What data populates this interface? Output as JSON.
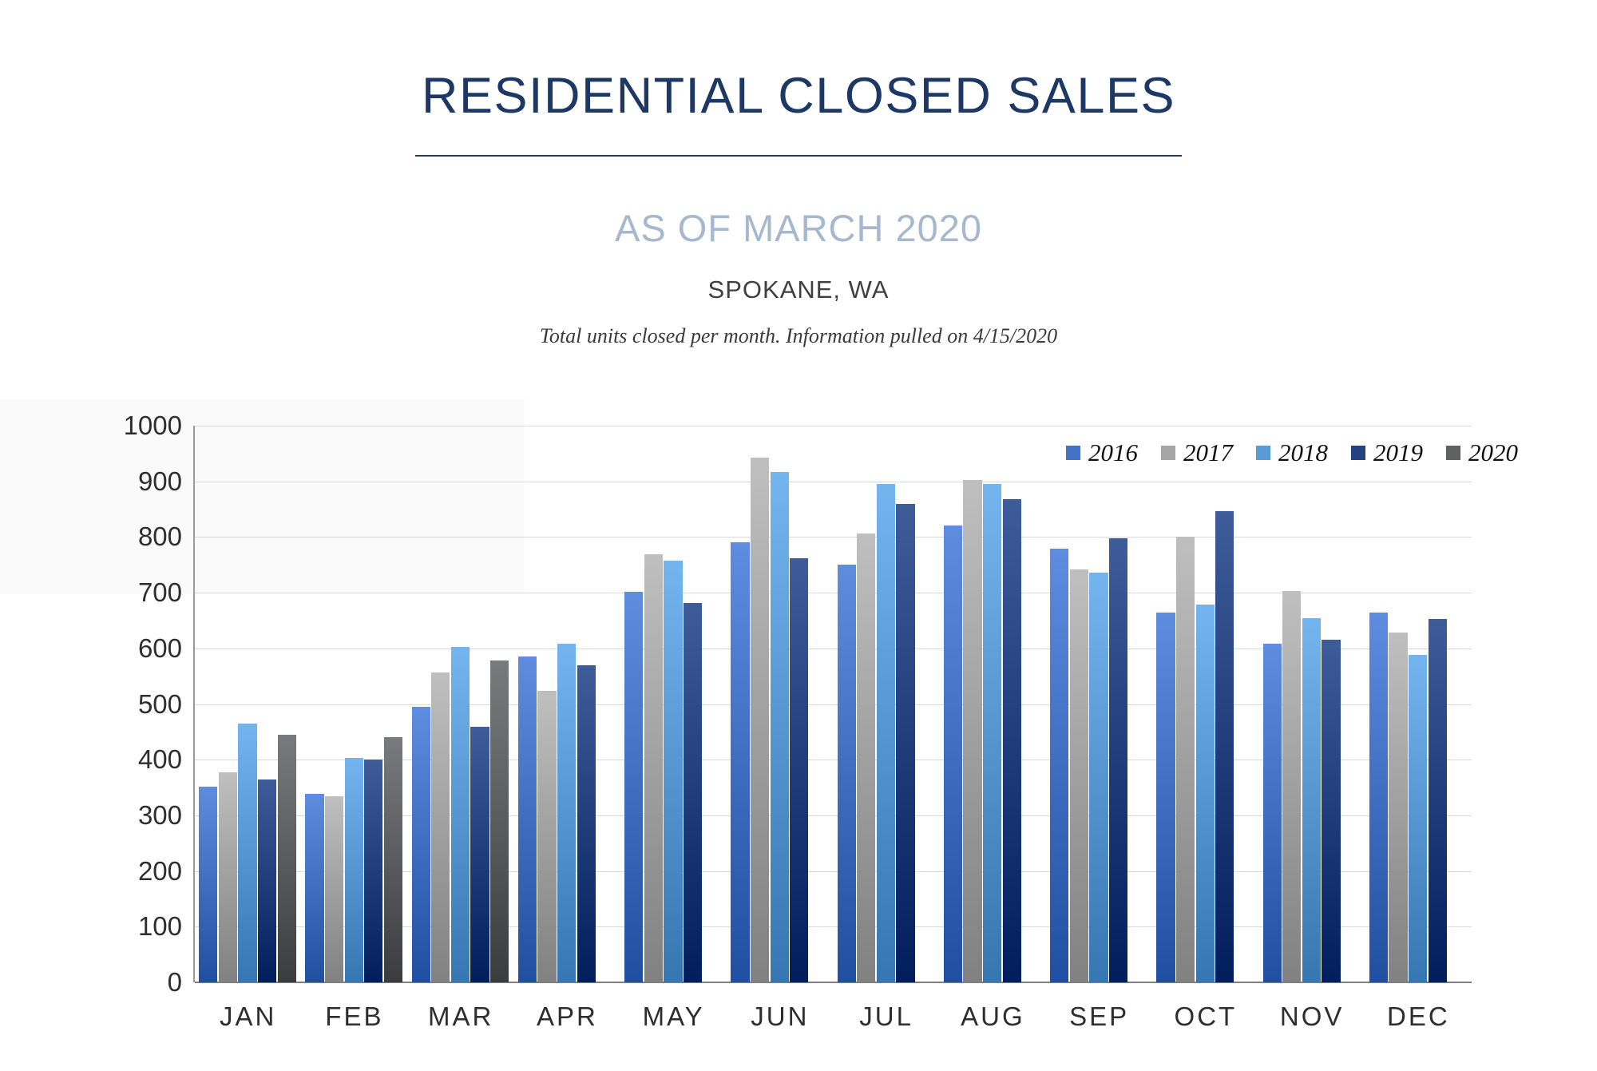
{
  "header": {
    "title": "RESIDENTIAL CLOSED SALES",
    "subtitle": "AS OF MARCH 2020",
    "location": "SPOKANE, WA",
    "note": "Total units closed per month.  Information pulled on 4/15/2020"
  },
  "chart_data": {
    "type": "bar",
    "title": "RESIDENTIAL CLOSED SALES",
    "subtitle": "AS OF MARCH 2020",
    "location": "SPOKANE, WA",
    "note": "Total units closed per month.  Information pulled on 4/15/2020",
    "categories": [
      "JAN",
      "FEB",
      "MAR",
      "APR",
      "MAY",
      "JUN",
      "JUL",
      "AUG",
      "SEP",
      "OCT",
      "NOV",
      "DEC"
    ],
    "series": [
      {
        "name": "2016",
        "color": "#4472C4",
        "values": [
          352,
          338,
          495,
          586,
          701,
          791,
          750,
          821,
          779,
          664,
          608,
          664
        ]
      },
      {
        "name": "2017",
        "color": "#A5A5A5",
        "values": [
          377,
          334,
          556,
          524,
          769,
          943,
          806,
          902,
          742,
          801,
          703,
          628
        ]
      },
      {
        "name": "2018",
        "color": "#5B9BD5",
        "values": [
          465,
          403,
          602,
          608,
          757,
          917,
          895,
          895,
          736,
          679,
          654,
          588
        ]
      },
      {
        "name": "2019",
        "color": "#254280",
        "values": [
          365,
          401,
          459,
          569,
          681,
          762,
          860,
          868,
          798,
          846,
          616,
          653
        ]
      },
      {
        "name": "2020",
        "color": "#5F6062",
        "values": [
          445,
          441,
          578,
          null,
          null,
          null,
          null,
          null,
          null,
          null,
          null,
          null
        ]
      }
    ],
    "ylabel": "",
    "xlabel": "",
    "ylim": [
      0,
      1000
    ],
    "y_ticks": [
      0,
      100,
      200,
      300,
      400,
      500,
      600,
      700,
      800,
      900,
      1000
    ],
    "grid": "horizontal",
    "legend_position": "top-right"
  }
}
